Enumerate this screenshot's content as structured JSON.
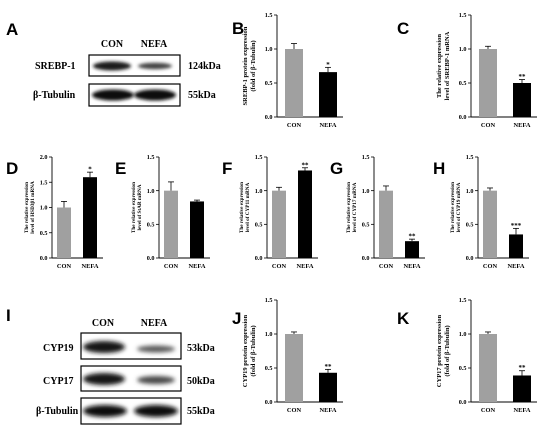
{
  "panels": {
    "A": "A",
    "B": "B",
    "C": "C",
    "D": "D",
    "E": "E",
    "F": "F",
    "G": "G",
    "H": "H",
    "I": "I",
    "J": "J",
    "K": "K"
  },
  "blot_A": {
    "lanes": [
      "CON",
      "NEFA"
    ],
    "rows": [
      {
        "protein": "SREBP-1",
        "size": "124kDa"
      },
      {
        "protein": "β-Tubulin",
        "size": "55kDa"
      }
    ]
  },
  "blot_I": {
    "lanes": [
      "CON",
      "NEFA"
    ],
    "rows": [
      {
        "protein": "CYP19",
        "size": "53kDa"
      },
      {
        "protein": "CYP17",
        "size": "50kDa"
      },
      {
        "protein": "β-Tubulin",
        "size": "55kDa"
      }
    ]
  },
  "colors": {
    "con": "#a0a0a0",
    "nefa": "#000000"
  },
  "chart_data": [
    {
      "panel": "B",
      "type": "bar",
      "categories": [
        "CON",
        "NEFA"
      ],
      "values": [
        1.0,
        0.66
      ],
      "errors": [
        0.08,
        0.07
      ],
      "significance": [
        "",
        "*"
      ],
      "ylabel": [
        "SREBP-1 protein expression",
        "(fold of β-Tubulin)"
      ],
      "ylim": [
        0,
        1.5
      ],
      "yticks": [
        "0.0",
        "0.5",
        "1.0",
        "1.5"
      ]
    },
    {
      "panel": "C",
      "type": "bar",
      "categories": [
        "CON",
        "NEFA"
      ],
      "values": [
        1.0,
        0.5
      ],
      "errors": [
        0.04,
        0.05
      ],
      "significance": [
        "",
        "**"
      ],
      "ylabel": [
        "The relative expression",
        "level of SREBP-1 mRNA"
      ],
      "ylim": [
        0,
        1.5
      ],
      "yticks": [
        "0.0",
        "0.5",
        "1.0",
        "1.5"
      ]
    },
    {
      "panel": "D",
      "type": "bar",
      "categories": [
        "CON",
        "NEFA"
      ],
      "values": [
        1.0,
        1.6
      ],
      "errors": [
        0.12,
        0.1
      ],
      "significance": [
        "",
        "*"
      ],
      "ylabel": [
        "The relative expression",
        "level of HSD3β1 mRNA"
      ],
      "ylim": [
        0,
        2.0
      ],
      "yticks": [
        "0.0",
        "0.5",
        "1.0",
        "1.5",
        "2.0"
      ]
    },
    {
      "panel": "E",
      "type": "bar",
      "categories": [
        "CON",
        "NEFA"
      ],
      "values": [
        1.0,
        0.84
      ],
      "errors": [
        0.13,
        0.02
      ],
      "significance": [
        "",
        ""
      ],
      "ylabel": [
        "The relative expression",
        "level of StAR mRNA"
      ],
      "ylim": [
        0,
        1.5
      ],
      "yticks": [
        "0.0",
        "0.5",
        "1.0",
        "1.5"
      ]
    },
    {
      "panel": "F",
      "type": "bar",
      "categories": [
        "CON",
        "NEFA"
      ],
      "values": [
        1.0,
        1.3
      ],
      "errors": [
        0.05,
        0.04
      ],
      "significance": [
        "",
        "**"
      ],
      "ylabel": [
        "The relative expression",
        "level of CYP11 mRNA"
      ],
      "ylim": [
        0,
        1.5
      ],
      "yticks": [
        "0.0",
        "0.5",
        "1.0",
        "1.5"
      ]
    },
    {
      "panel": "G",
      "type": "bar",
      "categories": [
        "CON",
        "NEFA"
      ],
      "values": [
        1.0,
        0.25
      ],
      "errors": [
        0.07,
        0.03
      ],
      "significance": [
        "",
        "**"
      ],
      "ylabel": [
        "The relative expression",
        "level of CYP17 mRNA"
      ],
      "ylim": [
        0,
        1.5
      ],
      "yticks": [
        "0.0",
        "0.5",
        "1.0",
        "1.5"
      ]
    },
    {
      "panel": "H",
      "type": "bar",
      "categories": [
        "CON",
        "NEFA"
      ],
      "values": [
        1.0,
        0.35
      ],
      "errors": [
        0.04,
        0.09
      ],
      "significance": [
        "",
        "***"
      ],
      "ylabel": [
        "The relative expression",
        "level of CYP19 mRNA"
      ],
      "ylim": [
        0,
        1.5
      ],
      "yticks": [
        "0.0",
        "0.5",
        "1.0",
        "1.5"
      ]
    },
    {
      "panel": "J",
      "type": "bar",
      "categories": [
        "CON",
        "NEFA"
      ],
      "values": [
        1.0,
        0.43
      ],
      "errors": [
        0.03,
        0.05
      ],
      "significance": [
        "",
        "**"
      ],
      "ylabel": [
        "CYP19 protein expression",
        "(fold of β-Tubulin)"
      ],
      "ylim": [
        0,
        1.5
      ],
      "yticks": [
        "0.0",
        "0.5",
        "1.0",
        "1.5"
      ]
    },
    {
      "panel": "K",
      "type": "bar",
      "categories": [
        "CON",
        "NEFA"
      ],
      "values": [
        1.0,
        0.39
      ],
      "errors": [
        0.03,
        0.07
      ],
      "significance": [
        "",
        "**"
      ],
      "ylabel": [
        "CYP17 protein expression",
        "(fold of β-Tubulin)"
      ],
      "ylim": [
        0,
        1.5
      ],
      "yticks": [
        "0.0",
        "0.5",
        "1.0",
        "1.5"
      ]
    }
  ]
}
